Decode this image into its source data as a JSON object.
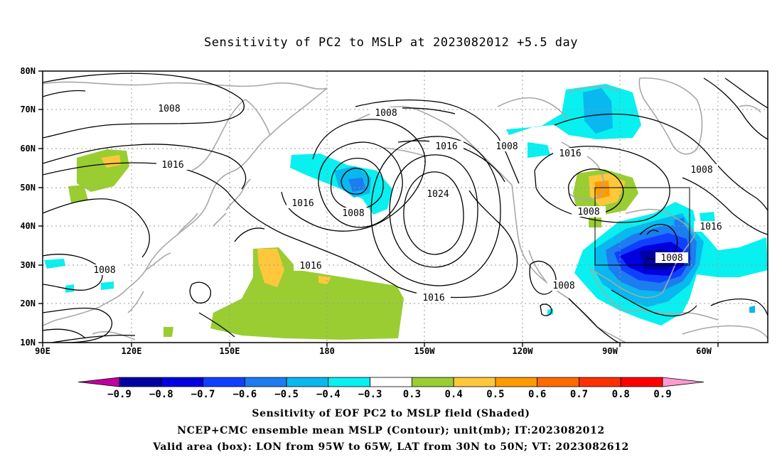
{
  "title": "Sensitivity of PC2 to MSLP at 2023082012 +5.5 day",
  "axes": {
    "lat_labels": [
      "80N",
      "70N",
      "60N",
      "50N",
      "40N",
      "30N",
      "20N",
      "10N"
    ],
    "lon_labels": [
      "90E",
      "120E",
      "150E",
      "180",
      "150W",
      "120W",
      "90W",
      "60W"
    ]
  },
  "contour_labels": [
    "1008",
    "1016",
    "1016",
    "1008",
    "1008",
    "1016",
    "1008",
    "1016",
    "1008",
    "1024",
    "1016",
    "1016",
    "1016",
    "1008",
    "1008",
    "1008",
    "1016",
    "1008"
  ],
  "colorbar": {
    "labels": [
      "-0.9",
      "-0.8",
      "-0.7",
      "-0.6",
      "-0.5",
      "-0.4",
      "-0.3",
      "0.3",
      "0.4",
      "0.5",
      "0.6",
      "0.7",
      "0.8",
      "0.9"
    ],
    "colors": [
      "#c000a0",
      "#0000a0",
      "#0000e0",
      "#1040ff",
      "#1c7cf0",
      "#08b8ee",
      "#08f0f0",
      "#ffffff",
      "#9acd32",
      "#ffc83c",
      "#ff9a00",
      "#ff6a00",
      "#ff3000",
      "#ff0000",
      "#ff9ad2"
    ]
  },
  "footer": {
    "line1": "Sensitivity of EOF PC2 to MSLP field (Shaded)",
    "line2": "NCEP+CMC ensemble mean MSLP (Contour); unit(mb); IT:2023082012",
    "line3": "Valid area (box): LON from 95W to 65W, LAT from 30N to 50N; VT: 2023082612"
  }
}
